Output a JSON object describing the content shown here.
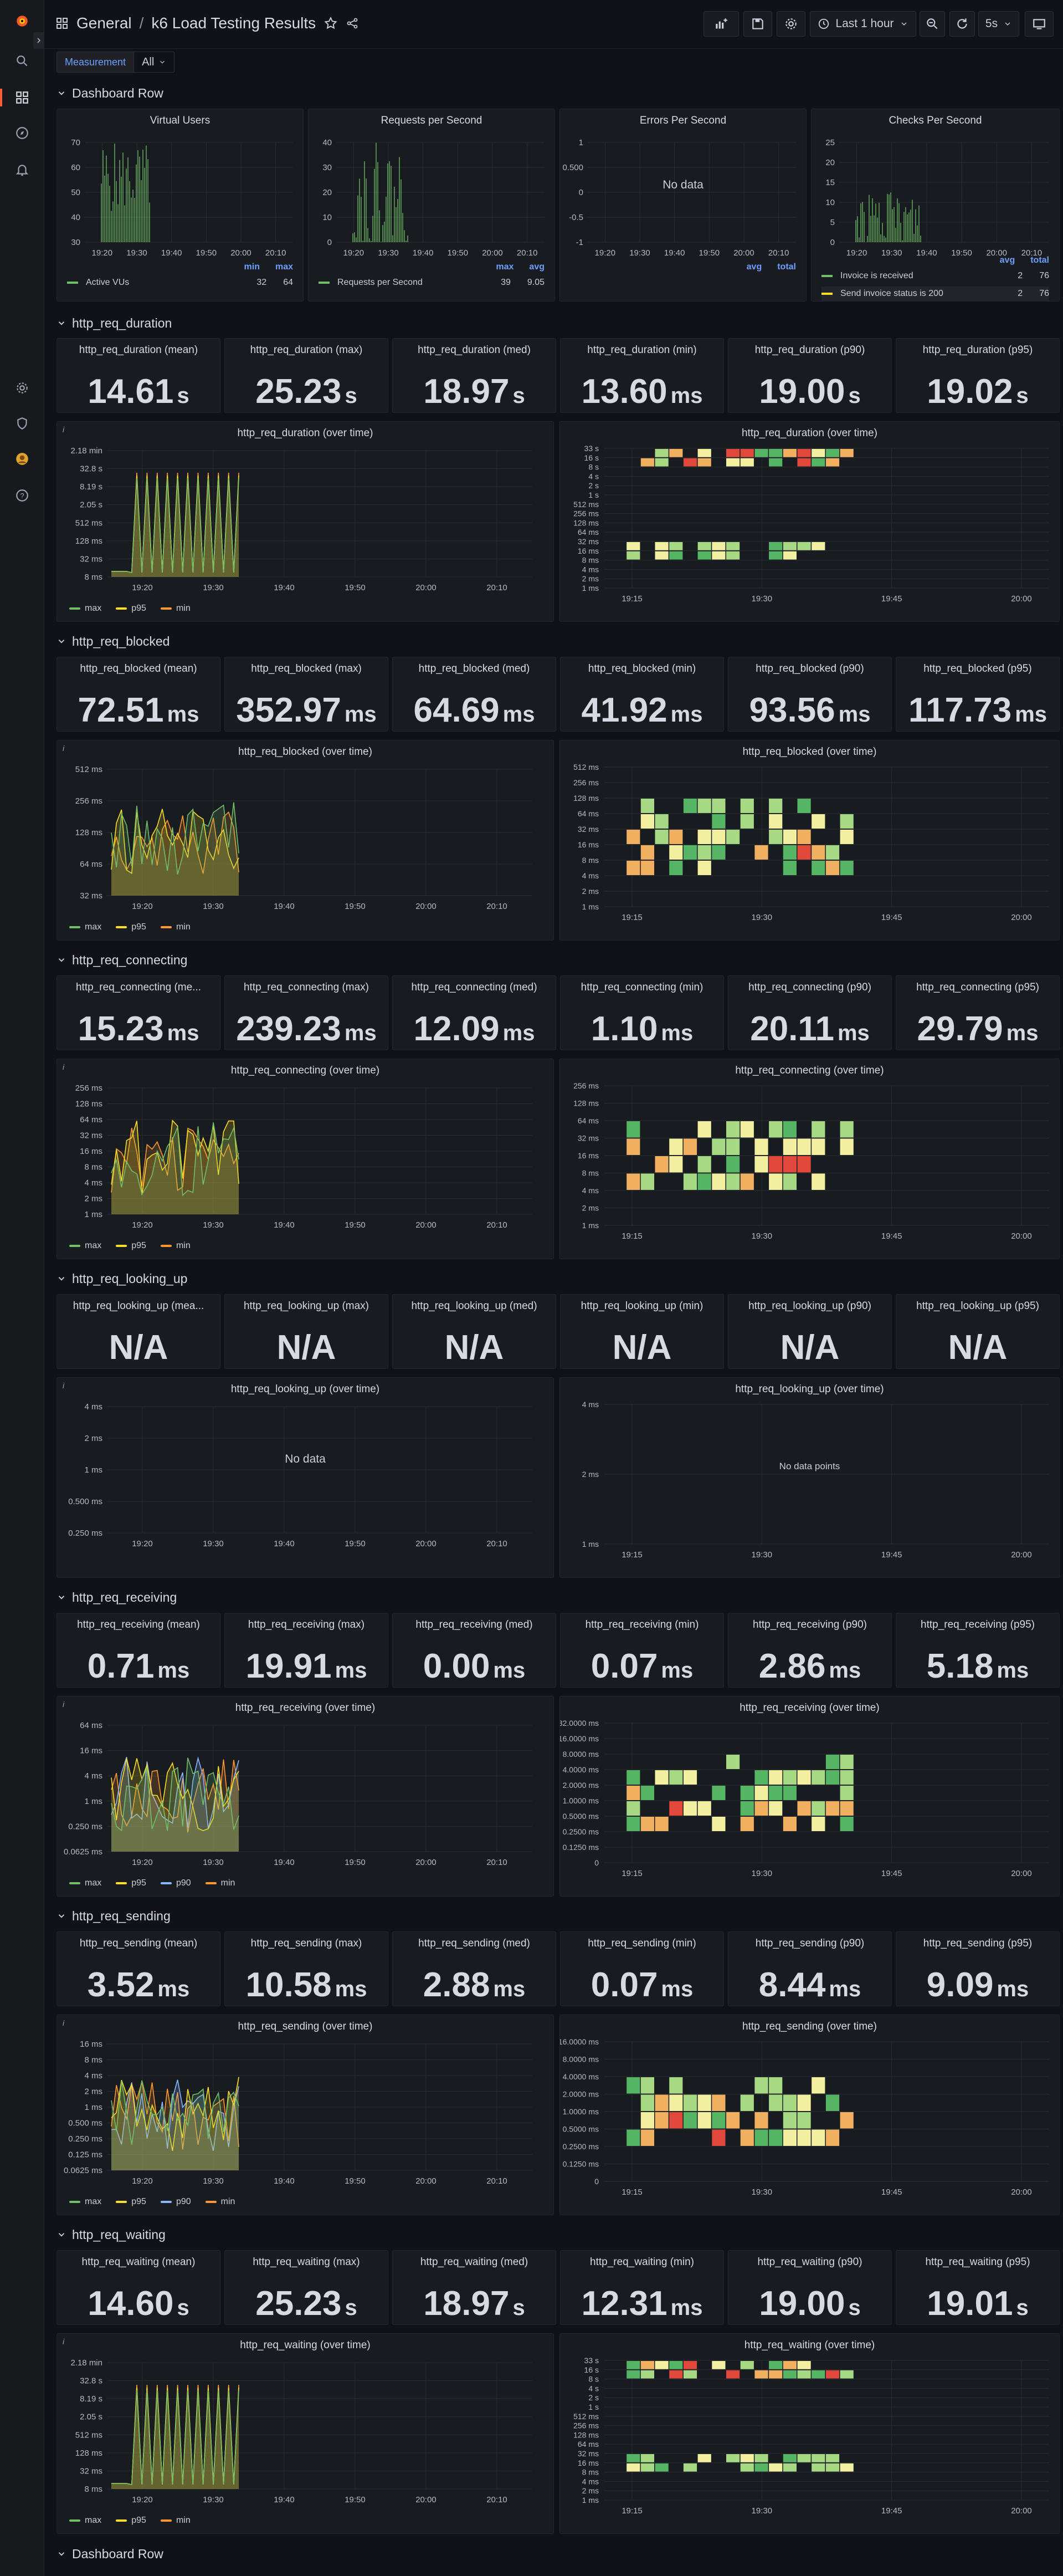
{
  "header": {
    "breadcrumb_folder": "General",
    "breadcrumb_sep": "/",
    "title": "k6 Load Testing Results",
    "time_range": "Last 1 hour",
    "refresh": "5s"
  },
  "variables": [
    {
      "label": "Measurement",
      "value": "All"
    }
  ],
  "rows": [
    {
      "title": "Dashboard Row"
    },
    {
      "title": "http_req_duration"
    },
    {
      "title": "http_req_blocked"
    },
    {
      "title": "http_req_connecting"
    },
    {
      "title": "http_req_looking_up"
    },
    {
      "title": "http_req_receiving"
    },
    {
      "title": "http_req_sending"
    },
    {
      "title": "http_req_waiting"
    },
    {
      "title": "Dashboard Row"
    }
  ],
  "overview": [
    {
      "title": "Virtual Users",
      "yticks": [
        "70",
        "60",
        "50",
        "40",
        "30"
      ],
      "xticks": [
        "19:20",
        "19:30",
        "19:40",
        "19:50",
        "20:00",
        "20:10"
      ],
      "legend_headers": [
        "min",
        "max"
      ],
      "legend_rows": [
        {
          "name": "Active VUs",
          "color": "#73bf69",
          "values": [
            "32",
            "64"
          ]
        }
      ]
    },
    {
      "title": "Requests per Second",
      "yticks": [
        "40",
        "30",
        "20",
        "10",
        "0"
      ],
      "xticks": [
        "19:20",
        "19:30",
        "19:40",
        "19:50",
        "20:00",
        "20:10"
      ],
      "legend_headers": [
        "max",
        "avg"
      ],
      "legend_rows": [
        {
          "name": "Requests per Second",
          "color": "#73bf69",
          "values": [
            "39",
            "9.05"
          ]
        }
      ]
    },
    {
      "title": "Errors Per Second",
      "yticks": [
        "1",
        "0.500",
        "0",
        "-0.5",
        "-1"
      ],
      "xticks": [
        "19:20",
        "19:30",
        "19:40",
        "19:50",
        "20:00",
        "20:10"
      ],
      "nodata": "No data",
      "legend_headers": [
        "avg",
        "total"
      ],
      "legend_rows": []
    },
    {
      "title": "Checks Per Second",
      "yticks": [
        "25",
        "20",
        "15",
        "10",
        "5",
        "0"
      ],
      "xticks": [
        "19:20",
        "19:30",
        "19:40",
        "19:50",
        "20:00",
        "20:10"
      ],
      "legend_headers": [
        "avg",
        "total"
      ],
      "legend_rows": [
        {
          "name": "Invoice is received",
          "color": "#73bf69",
          "values": [
            "2",
            "76"
          ]
        },
        {
          "name": "Send invoice status is 200",
          "color": "#fade2a",
          "values": [
            "2",
            "76"
          ]
        }
      ]
    }
  ],
  "legend_series": [
    {
      "name": "max",
      "color": "#73bf69"
    },
    {
      "name": "p95",
      "color": "#fade2a"
    },
    {
      "name": "p90",
      "color": "#8ab8ff"
    },
    {
      "name": "min",
      "color": "#ff9830"
    }
  ],
  "metrics": [
    {
      "name": "http_req_duration",
      "stats": [
        {
          "title": "http_req_duration (mean)",
          "value": "14.61",
          "unit": "s"
        },
        {
          "title": "http_req_duration (max)",
          "value": "25.23",
          "unit": "s"
        },
        {
          "title": "http_req_duration (med)",
          "value": "18.97",
          "unit": "s"
        },
        {
          "title": "http_req_duration (min)",
          "value": "13.60",
          "unit": "ms"
        },
        {
          "title": "http_req_duration (p90)",
          "value": "19.00",
          "unit": "s"
        },
        {
          "title": "http_req_duration (p95)",
          "value": "19.02",
          "unit": "s"
        }
      ],
      "graph_title": "http_req_duration (over time)",
      "graph_yticks": [
        "2.18 min",
        "32.8 s",
        "8.19 s",
        "2.05 s",
        "512 ms",
        "128 ms",
        "32 ms",
        "8 ms"
      ],
      "graph_xticks": [
        "19:20",
        "19:30",
        "19:40",
        "19:50",
        "20:00",
        "20:10"
      ],
      "graph_legend": [
        "max",
        "p95",
        "min"
      ],
      "heatmap_title": "http_req_duration (over time)",
      "heatmap_yticks": [
        "33 s",
        "16 s",
        "8 s",
        "4 s",
        "2 s",
        "1 s",
        "512 ms",
        "256 ms",
        "128 ms",
        "64 ms",
        "32 ms",
        "16 ms",
        "8 ms",
        "4 ms",
        "2 ms",
        "1 ms"
      ],
      "heatmap_xticks": [
        "19:15",
        "19:30",
        "19:45",
        "20:00"
      ],
      "heatmap_nodata": ""
    },
    {
      "name": "http_req_blocked",
      "stats": [
        {
          "title": "http_req_blocked (mean)",
          "value": "72.51",
          "unit": "ms"
        },
        {
          "title": "http_req_blocked (max)",
          "value": "352.97",
          "unit": "ms"
        },
        {
          "title": "http_req_blocked (med)",
          "value": "64.69",
          "unit": "ms"
        },
        {
          "title": "http_req_blocked (min)",
          "value": "41.92",
          "unit": "ms"
        },
        {
          "title": "http_req_blocked (p90)",
          "value": "93.56",
          "unit": "ms"
        },
        {
          "title": "http_req_blocked (p95)",
          "value": "117.73",
          "unit": "ms"
        }
      ],
      "graph_title": "http_req_blocked (over time)",
      "graph_yticks": [
        "512 ms",
        "256 ms",
        "128 ms",
        "64 ms",
        "32 ms"
      ],
      "graph_xticks": [
        "19:20",
        "19:30",
        "19:40",
        "19:50",
        "20:00",
        "20:10"
      ],
      "graph_legend": [
        "max",
        "p95",
        "min"
      ],
      "heatmap_title": "http_req_blocked (over time)",
      "heatmap_yticks": [
        "512 ms",
        "256 ms",
        "128 ms",
        "64 ms",
        "32 ms",
        "16 ms",
        "8 ms",
        "4 ms",
        "2 ms",
        "1 ms"
      ],
      "heatmap_xticks": [
        "19:15",
        "19:30",
        "19:45",
        "20:00"
      ],
      "heatmap_nodata": ""
    },
    {
      "name": "http_req_connecting",
      "stats": [
        {
          "title": "http_req_connecting (me...",
          "value": "15.23",
          "unit": "ms"
        },
        {
          "title": "http_req_connecting (max)",
          "value": "239.23",
          "unit": "ms"
        },
        {
          "title": "http_req_connecting (med)",
          "value": "12.09",
          "unit": "ms"
        },
        {
          "title": "http_req_connecting (min)",
          "value": "1.10",
          "unit": "ms"
        },
        {
          "title": "http_req_connecting (p90)",
          "value": "20.11",
          "unit": "ms"
        },
        {
          "title": "http_req_connecting (p95)",
          "value": "29.79",
          "unit": "ms"
        }
      ],
      "graph_title": "http_req_connecting (over time)",
      "graph_yticks": [
        "256 ms",
        "128 ms",
        "64 ms",
        "32 ms",
        "16 ms",
        "8 ms",
        "4 ms",
        "2 ms",
        "1 ms"
      ],
      "graph_xticks": [
        "19:20",
        "19:30",
        "19:40",
        "19:50",
        "20:00",
        "20:10"
      ],
      "graph_legend": [
        "max",
        "p95",
        "min"
      ],
      "heatmap_title": "http_req_connecting (over time)",
      "heatmap_yticks": [
        "256 ms",
        "128 ms",
        "64 ms",
        "32 ms",
        "16 ms",
        "8 ms",
        "4 ms",
        "2 ms",
        "1 ms"
      ],
      "heatmap_xticks": [
        "19:15",
        "19:30",
        "19:45",
        "20:00"
      ],
      "heatmap_nodata": ""
    },
    {
      "name": "http_req_looking_up",
      "stats": [
        {
          "title": "http_req_looking_up (mea...",
          "value": "N/A",
          "unit": ""
        },
        {
          "title": "http_req_looking_up (max)",
          "value": "N/A",
          "unit": ""
        },
        {
          "title": "http_req_looking_up (med)",
          "value": "N/A",
          "unit": ""
        },
        {
          "title": "http_req_looking_up (min)",
          "value": "N/A",
          "unit": ""
        },
        {
          "title": "http_req_looking_up (p90)",
          "value": "N/A",
          "unit": ""
        },
        {
          "title": "http_req_looking_up (p95)",
          "value": "N/A",
          "unit": ""
        }
      ],
      "graph_title": "http_req_looking_up (over time)",
      "graph_yticks": [
        "4 ms",
        "2 ms",
        "1 ms",
        "0.500 ms",
        "0.250 ms"
      ],
      "graph_xticks": [
        "19:20",
        "19:30",
        "19:40",
        "19:50",
        "20:00",
        "20:10"
      ],
      "graph_legend": [],
      "graph_nodata": "No data",
      "heatmap_title": "http_req_looking_up (over time)",
      "heatmap_yticks": [
        "4 ms",
        "2 ms",
        "1 ms"
      ],
      "heatmap_xticks": [
        "19:15",
        "19:30",
        "19:45",
        "20:00"
      ],
      "heatmap_nodata": "No data points"
    },
    {
      "name": "http_req_receiving",
      "stats": [
        {
          "title": "http_req_receiving (mean)",
          "value": "0.71",
          "unit": "ms"
        },
        {
          "title": "http_req_receiving (max)",
          "value": "19.91",
          "unit": "ms"
        },
        {
          "title": "http_req_receiving (med)",
          "value": "0.00",
          "unit": "ms"
        },
        {
          "title": "http_req_receiving (min)",
          "value": "0.07",
          "unit": "ms"
        },
        {
          "title": "http_req_receiving (p90)",
          "value": "2.86",
          "unit": "ms"
        },
        {
          "title": "http_req_receiving (p95)",
          "value": "5.18",
          "unit": "ms"
        }
      ],
      "graph_title": "http_req_receiving (over time)",
      "graph_yticks": [
        "64 ms",
        "16 ms",
        "4 ms",
        "1 ms",
        "0.250 ms",
        "0.0625 ms"
      ],
      "graph_xticks": [
        "19:20",
        "19:30",
        "19:40",
        "19:50",
        "20:00",
        "20:10"
      ],
      "graph_legend": [
        "max",
        "p95",
        "p90",
        "min"
      ],
      "heatmap_title": "http_req_receiving (over time)",
      "heatmap_yticks": [
        "32.0000 ms",
        "16.0000 ms",
        "8.0000 ms",
        "4.0000 ms",
        "2.0000 ms",
        "1.0000 ms",
        "0.5000 ms",
        "0.2500 ms",
        "0.1250 ms",
        "0"
      ],
      "heatmap_xticks": [
        "19:15",
        "19:30",
        "19:45",
        "20:00"
      ],
      "heatmap_nodata": ""
    },
    {
      "name": "http_req_sending",
      "stats": [
        {
          "title": "http_req_sending (mean)",
          "value": "3.52",
          "unit": "ms"
        },
        {
          "title": "http_req_sending (max)",
          "value": "10.58",
          "unit": "ms"
        },
        {
          "title": "http_req_sending (med)",
          "value": "2.88",
          "unit": "ms"
        },
        {
          "title": "http_req_sending (min)",
          "value": "0.07",
          "unit": "ms"
        },
        {
          "title": "http_req_sending (p90)",
          "value": "8.44",
          "unit": "ms"
        },
        {
          "title": "http_req_sending (p95)",
          "value": "9.09",
          "unit": "ms"
        }
      ],
      "graph_title": "http_req_sending (over time)",
      "graph_yticks": [
        "16 ms",
        "8 ms",
        "4 ms",
        "2 ms",
        "1 ms",
        "0.500 ms",
        "0.250 ms",
        "0.125 ms",
        "0.0625 ms"
      ],
      "graph_xticks": [
        "19:20",
        "19:30",
        "19:40",
        "19:50",
        "20:00",
        "20:10"
      ],
      "graph_legend": [
        "max",
        "p95",
        "p90",
        "min"
      ],
      "heatmap_title": "http_req_sending (over time)",
      "heatmap_yticks": [
        "16.0000 ms",
        "8.0000 ms",
        "4.0000 ms",
        "2.0000 ms",
        "1.0000 ms",
        "0.5000 ms",
        "0.2500 ms",
        "0.1250 ms",
        "0"
      ],
      "heatmap_xticks": [
        "19:15",
        "19:30",
        "19:45",
        "20:00"
      ],
      "heatmap_nodata": ""
    },
    {
      "name": "http_req_waiting",
      "stats": [
        {
          "title": "http_req_waiting (mean)",
          "value": "14.60",
          "unit": "s"
        },
        {
          "title": "http_req_waiting (max)",
          "value": "25.23",
          "unit": "s"
        },
        {
          "title": "http_req_waiting (med)",
          "value": "18.97",
          "unit": "s"
        },
        {
          "title": "http_req_waiting (min)",
          "value": "12.31",
          "unit": "ms"
        },
        {
          "title": "http_req_waiting (p90)",
          "value": "19.00",
          "unit": "s"
        },
        {
          "title": "http_req_waiting (p95)",
          "value": "19.01",
          "unit": "s"
        }
      ],
      "graph_title": "http_req_waiting (over time)",
      "graph_yticks": [
        "2.18 min",
        "32.8 s",
        "8.19 s",
        "2.05 s",
        "512 ms",
        "128 ms",
        "32 ms",
        "8 ms"
      ],
      "graph_xticks": [
        "19:20",
        "19:30",
        "19:40",
        "19:50",
        "20:00",
        "20:10"
      ],
      "graph_legend": [
        "max",
        "p95",
        "min"
      ],
      "heatmap_title": "http_req_waiting (over time)",
      "heatmap_yticks": [
        "33 s",
        "16 s",
        "8 s",
        "4 s",
        "2 s",
        "1 s",
        "512 ms",
        "256 ms",
        "128 ms",
        "64 ms",
        "32 ms",
        "16 ms",
        "8 ms",
        "4 ms",
        "2 ms",
        "1 ms"
      ],
      "heatmap_xticks": [
        "19:15",
        "19:30",
        "19:45",
        "20:00"
      ],
      "heatmap_nodata": ""
    }
  ],
  "colors": {
    "green": "#73bf69",
    "yellow": "#fade2a",
    "blue": "#8ab8ff",
    "orange": "#ff9830",
    "accent": "#6e9fff"
  }
}
